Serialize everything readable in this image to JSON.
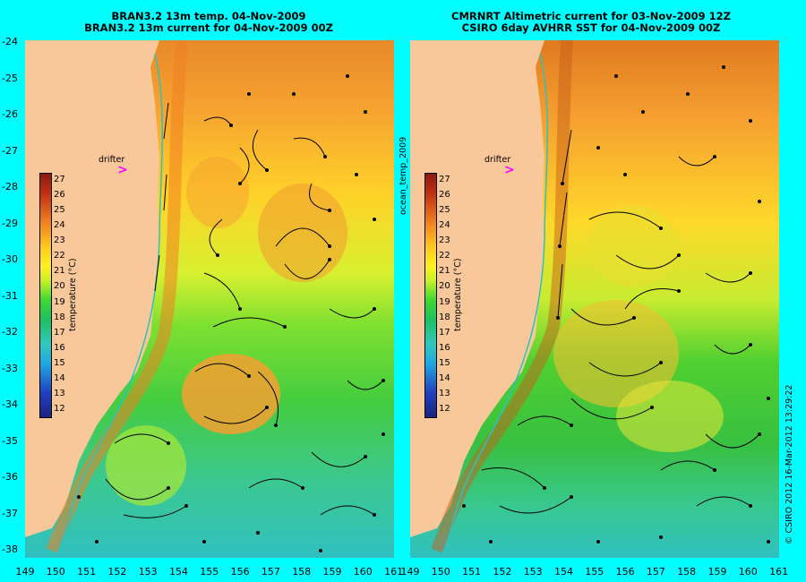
{
  "titles": {
    "left": [
      "BRAN3.2 13m temp. 04-Nov-2009",
      "BRAN3.2 13m current for 04-Nov-2009 00Z"
    ],
    "right": [
      "CMRNRT Altimetric current for 03-Nov-2009 12Z",
      "CSIRO 6day AVHRR SST for 04-Nov-2009 00Z"
    ]
  },
  "y_ticks": [
    "-24",
    "-25",
    "-26",
    "-27",
    "-28",
    "-29",
    "-30",
    "-31",
    "-32",
    "-33",
    "-34",
    "-35",
    "-36",
    "-37",
    "-38"
  ],
  "x_ticks": [
    "149",
    "150",
    "151",
    "152",
    "153",
    "154",
    "155",
    "156",
    "157",
    "158",
    "159",
    "160",
    "161"
  ],
  "colorbar": {
    "title": "temperature (°C)",
    "ticks": [
      "27",
      "26",
      "25",
      "24",
      "23",
      "22",
      "21",
      "20",
      "19",
      "18",
      "17",
      "16",
      "15",
      "14",
      "13",
      "12"
    ]
  },
  "drifter_label": "drifter",
  "drifter_symbol": ">",
  "side_label": "ocean_temp_2009",
  "credit": "© CSIRO 2012  16-Mar-2012 13:29:22",
  "map_data": {
    "type": "sea-surface-temperature-map",
    "lon_range": [
      149,
      161
    ],
    "lat_range": [
      -38,
      -24
    ],
    "colors": {
      "land": "#f8c89a",
      "background": "#00ffff",
      "drifter": "#ff00ff"
    }
  }
}
